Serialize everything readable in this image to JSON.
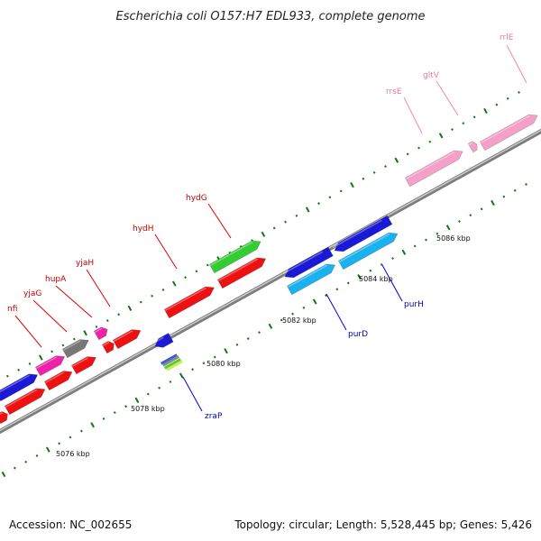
{
  "title": "Escherichia coli O157:H7 EDL933, complete genome",
  "footer": {
    "accession": "Accession: NC_002655",
    "summary": "Topology: circular; Length: 5,528,445 bp; Genes: 5,426"
  },
  "scale": {
    "tick_labels": [
      "5076 kbp",
      "5078 kbp",
      "5080 kbp",
      "5082 kbp",
      "5084 kbp",
      "5086 kbp"
    ]
  },
  "colors": {
    "red_gene": "#ee1111",
    "blue_gene": "#1a1ad6",
    "cyan_gene": "#1ab2ee",
    "green_gene": "#33cc33",
    "magenta_gene": "#ee22aa",
    "pink_gene": "#f5a0c8",
    "gray_gene": "#777777",
    "backbone": "#999999",
    "tick": "#117711"
  },
  "gene_labels": {
    "red": [
      "nfi",
      "yjaG",
      "hupA",
      "yjaH",
      "hydH",
      "hydG"
    ],
    "blue": [
      "zraP",
      "purD",
      "purH"
    ],
    "pink": [
      "rrsE",
      "gltV",
      "rrlE"
    ]
  }
}
